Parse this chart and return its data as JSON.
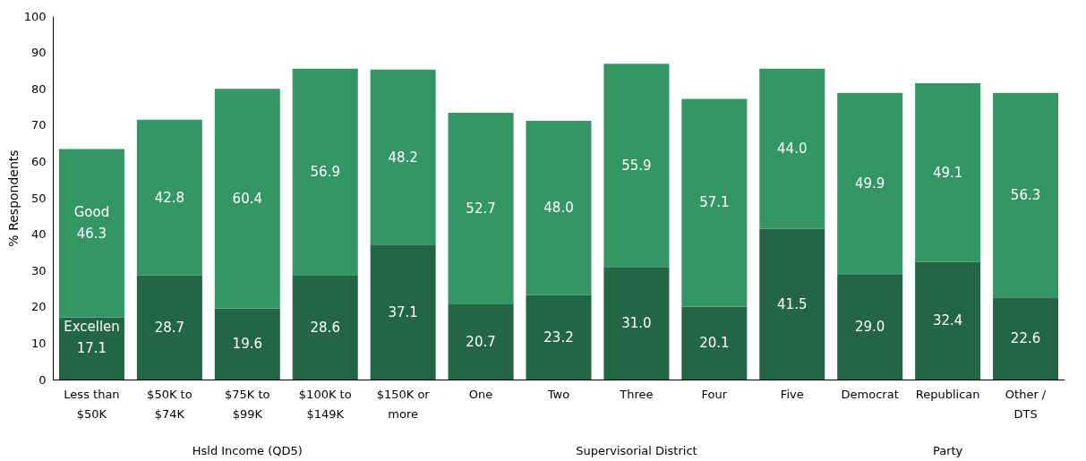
{
  "chart_data": {
    "type": "bar",
    "stacked": true,
    "ylabel": "% Respondents",
    "categories": [
      "Less than $50K",
      "$50K to $74K",
      "$75K to $99K",
      "$100K to $149K",
      "$150K or more",
      "One",
      "Two",
      "Three",
      "Four",
      "Five",
      "Democrat",
      "Republican",
      "Other / DTS"
    ],
    "series": [
      {
        "name": "Excellen",
        "color": "#236644",
        "values": [
          17.1,
          28.7,
          19.6,
          28.6,
          37.1,
          20.7,
          23.2,
          31.0,
          20.1,
          41.5,
          29.0,
          32.4,
          22.6
        ],
        "value_labels": [
          "17.1",
          "28.7",
          "19.6",
          "28.6",
          "37.1",
          "20.7",
          "23.2",
          "31.0",
          "20.1",
          "41.5",
          "29.0",
          "32.4",
          "22.6"
        ]
      },
      {
        "name": "Good",
        "color": "#339664",
        "values": [
          46.3,
          42.8,
          60.4,
          56.9,
          48.2,
          52.7,
          48.0,
          55.9,
          57.1,
          44.0,
          49.9,
          49.1,
          56.3
        ],
        "value_labels": [
          "46.3",
          "42.8",
          "60.4",
          "56.9",
          "48.2",
          "52.7",
          "48.0",
          "55.9",
          "57.1",
          "44.0",
          "49.9",
          "49.1",
          "56.3"
        ]
      }
    ],
    "ylim": [
      0,
      100
    ],
    "yticks": [
      0,
      10,
      20,
      30,
      40,
      50,
      60,
      70,
      80,
      90,
      100
    ],
    "legend": false,
    "grid": false,
    "annotations": [
      "Hsld Income (QD5)",
      "Supervisorial District",
      "Party"
    ]
  }
}
